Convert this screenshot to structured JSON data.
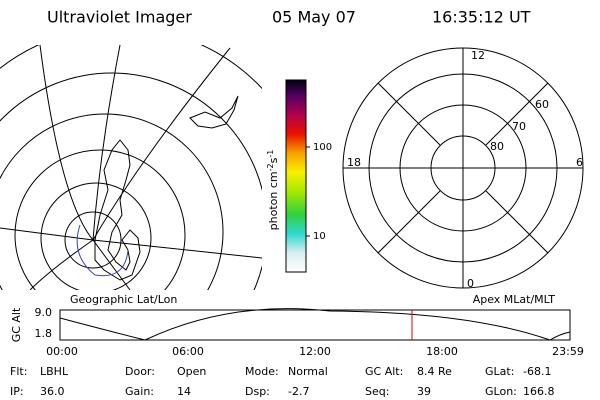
{
  "header": {
    "title": "Ultraviolet Imager",
    "date": "05 May 07",
    "time": "16:35:12 UT"
  },
  "colorbar": {
    "unit": [
      "photon cm",
      "-2",
      "s",
      "-1"
    ],
    "ticks": [
      "100",
      "10"
    ]
  },
  "polar": {
    "mlt": [
      "12",
      "18",
      "6",
      "0"
    ],
    "mlat": [
      "60",
      "70",
      "80"
    ]
  },
  "panels": {
    "left": "Geographic Lat/Lon",
    "right": "Apex MLat/MLT"
  },
  "timeline": {
    "ylabel": "GC Alt",
    "yticks": [
      "9.0",
      "1.8"
    ],
    "xticks": [
      "00:00",
      "06:00",
      "12:00",
      "18:00",
      "23:59"
    ]
  },
  "info": [
    [
      {
        "label": "Flt:",
        "value": "LBHL"
      },
      {
        "label": "Door:",
        "value": "Open"
      },
      {
        "label": "Mode:",
        "value": "Normal"
      },
      {
        "label": "GC Alt:",
        "value": "8.4 Re"
      },
      {
        "label": "GLat:",
        "value": "-68.1"
      }
    ],
    [
      {
        "label": "IP:",
        "value": "36.0"
      },
      {
        "label": "Gain:",
        "value": "14"
      },
      {
        "label": "Dsp:",
        "value": "-2.7"
      },
      {
        "label": "Seq:",
        "value": "39"
      },
      {
        "label": "GLon:",
        "value": "166.8"
      }
    ]
  ]
}
